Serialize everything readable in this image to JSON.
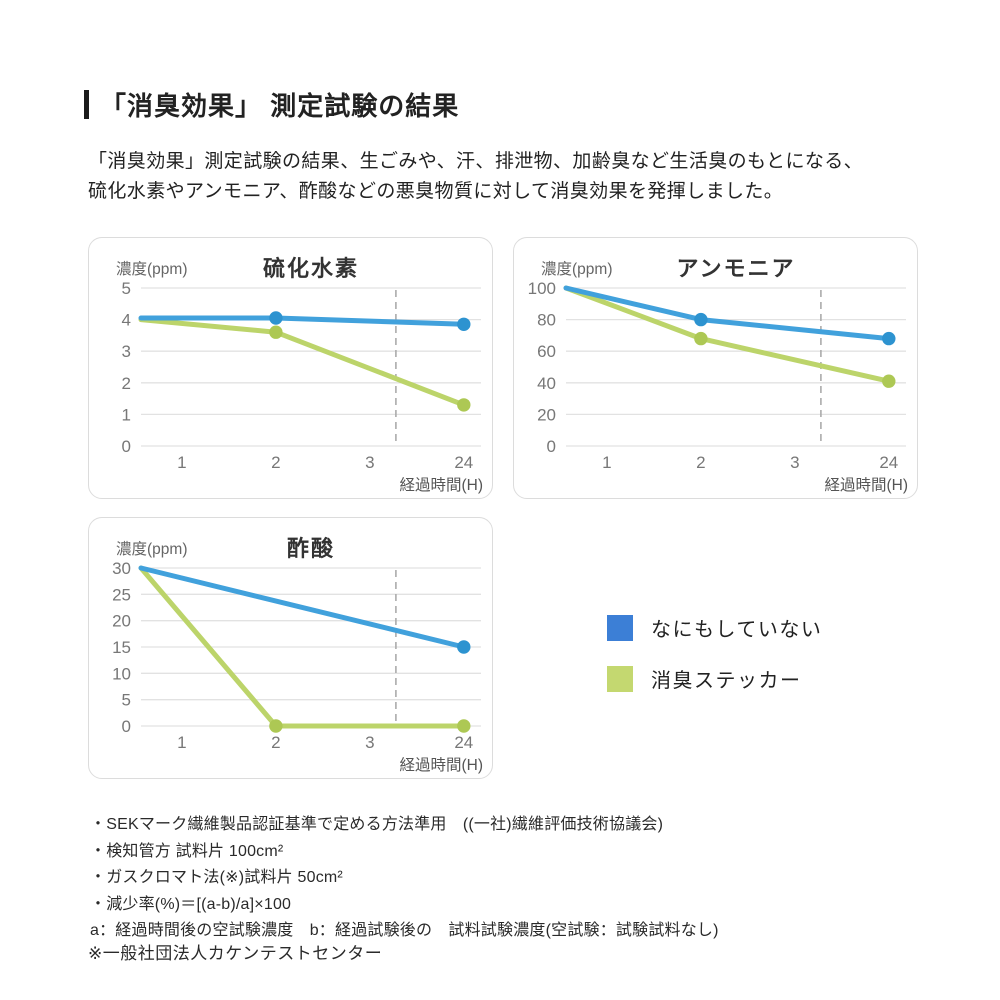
{
  "page": {
    "title": "「消臭効果」 測定試験の結果",
    "intro_line1": "「消臭効果」測定試験の結果、生ごみや、汗、排泄物、加齢臭など生活臭のもとになる、",
    "intro_line2": "硫化水素やアンモニア、酢酸などの悪臭物質に対して消臭効果を発揮しました。"
  },
  "colors": {
    "line_blue": "#41A1DC",
    "dot_blue": "#2D93D0",
    "line_green": "#BCD46A",
    "dot_green": "#ADC854",
    "legend_blue": "#3C7FD6",
    "legend_green": "#C4D870",
    "grid": "#E2E2E2",
    "dashed": "#ABABAB",
    "panel_border": "#DCDCDC",
    "tick_text": "#777777",
    "axis_label_text": "#555555",
    "title_text": "#333333"
  },
  "legend": {
    "items": [
      {
        "label": "なにもしていない",
        "color": "#3C7FD6"
      },
      {
        "label": "消臭ステッカー",
        "color": "#C4D870"
      }
    ]
  },
  "chart_data": [
    {
      "type": "line",
      "title": "硫化水素",
      "ylabel": "濃度(ppm)",
      "xlabel": "経過時間(H)",
      "x_ticks": [
        "1",
        "2",
        "3",
        "24"
      ],
      "ylim": [
        0,
        5
      ],
      "y_tick_step": 1,
      "grid": true,
      "axis_break_between": [
        "3",
        "24"
      ],
      "series": [
        {
          "name": "なにもしていない",
          "color": "#41A1DC",
          "dot_color": "#2D93D0",
          "points": [
            {
              "h": 0,
              "v": 4.05,
              "dot": false
            },
            {
              "h": 2,
              "v": 4.05,
              "dot": true
            },
            {
              "h": 24,
              "v": 3.85,
              "dot": true
            }
          ]
        },
        {
          "name": "消臭ステッカー",
          "color": "#BCD46A",
          "dot_color": "#ADC854",
          "points": [
            {
              "h": 0,
              "v": 4.0,
              "dot": false
            },
            {
              "h": 2,
              "v": 3.6,
              "dot": true
            },
            {
              "h": 24,
              "v": 1.3,
              "dot": true
            }
          ]
        }
      ]
    },
    {
      "type": "line",
      "title": "アンモニア",
      "ylabel": "濃度(ppm)",
      "xlabel": "経過時間(H)",
      "x_ticks": [
        "1",
        "2",
        "3",
        "24"
      ],
      "ylim": [
        0,
        100
      ],
      "y_tick_step": 20,
      "grid": true,
      "axis_break_between": [
        "3",
        "24"
      ],
      "series": [
        {
          "name": "なにもしていない",
          "color": "#41A1DC",
          "dot_color": "#2D93D0",
          "points": [
            {
              "h": 0,
              "v": 100,
              "dot": false
            },
            {
              "h": 2,
              "v": 80,
              "dot": true
            },
            {
              "h": 24,
              "v": 68,
              "dot": true
            }
          ]
        },
        {
          "name": "消臭ステッカー",
          "color": "#BCD46A",
          "dot_color": "#ADC854",
          "points": [
            {
              "h": 0,
              "v": 100,
              "dot": false
            },
            {
              "h": 2,
              "v": 68,
              "dot": true
            },
            {
              "h": 24,
              "v": 41,
              "dot": true
            }
          ]
        }
      ]
    },
    {
      "type": "line",
      "title": "酢酸",
      "ylabel": "濃度(ppm)",
      "xlabel": "経過時間(H)",
      "x_ticks": [
        "1",
        "2",
        "3",
        "24"
      ],
      "ylim": [
        0,
        30
      ],
      "y_tick_step": 5,
      "grid": true,
      "axis_break_between": [
        "3",
        "24"
      ],
      "series": [
        {
          "name": "なにもしていない",
          "color": "#41A1DC",
          "dot_color": "#2D93D0",
          "points": [
            {
              "h": 0,
              "v": 30,
              "dot": false
            },
            {
              "h": 24,
              "v": 15,
              "dot": true
            }
          ]
        },
        {
          "name": "消臭ステッカー",
          "color": "#BCD46A",
          "dot_color": "#ADC854",
          "points": [
            {
              "h": 0,
              "v": 30,
              "dot": false
            },
            {
              "h": 2,
              "v": 0,
              "dot": true
            },
            {
              "h": 24,
              "v": 0,
              "dot": true
            }
          ]
        }
      ]
    }
  ],
  "footnotes": {
    "lines": [
      "・SEKマーク繊維製品認証基準で定める方法準用　((一社)繊維評価技術協議会)",
      "・検知管方 試料片 100cm²",
      "・ガスクロマト法(※)試料片 50cm²",
      "・減少率(%)＝[(a-b)/a]×100",
      " a：経過時間後の空試験濃度　b：経過試験後の　試料試験濃度(空試験：試験試料なし)"
    ]
  },
  "source_note": "※一般社団法人カケンテストセンター"
}
